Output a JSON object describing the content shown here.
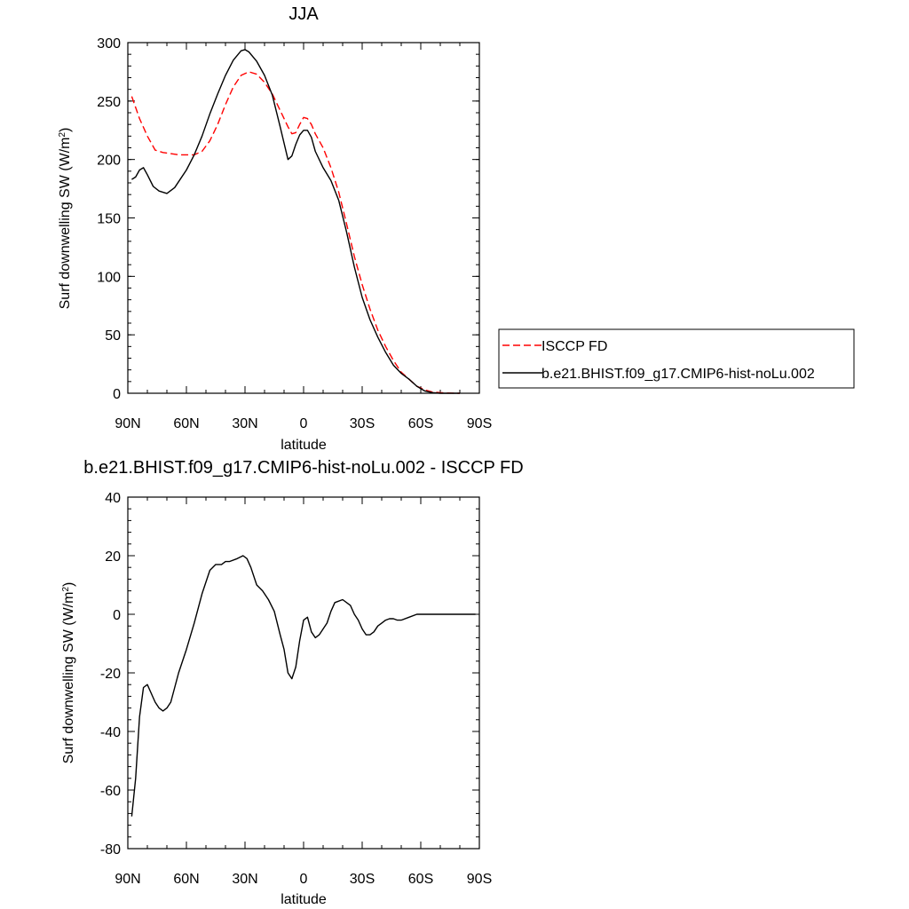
{
  "chart_data": [
    {
      "type": "line",
      "title": "JJA",
      "xlabel": "latitude",
      "ylabel": "Surf downwelling SW (W/m",
      "ylabel_sup": "2",
      "ylabel_close": ")",
      "xlim": [
        90,
        -90
      ],
      "ylim": [
        0,
        300
      ],
      "x_tick_values": [
        90,
        60,
        30,
        0,
        -30,
        -60,
        -90
      ],
      "x_tick_labels": [
        "90N",
        "60N",
        "30N",
        "0",
        "30S",
        "60S",
        "90S"
      ],
      "y_tick_values": [
        0,
        50,
        100,
        150,
        200,
        250,
        300
      ],
      "y_tick_labels": [
        "0",
        "50",
        "100",
        "150",
        "200",
        "250",
        "300"
      ],
      "legend_position": "right",
      "series": [
        {
          "name": "ISCCP FD",
          "color": "#ff0000",
          "dash": "dashed",
          "x": [
            88,
            84,
            80,
            76,
            72,
            68,
            64,
            60,
            56,
            52,
            48,
            44,
            40,
            36,
            32,
            28,
            24,
            20,
            16,
            12,
            8,
            6,
            4,
            2,
            0,
            -2,
            -4,
            -6,
            -10,
            -14,
            -18,
            -22,
            -26,
            -30,
            -34,
            -38,
            -42,
            -46,
            -50,
            -54,
            -58,
            -62,
            -66,
            -70,
            -74,
            -78,
            -80
          ],
          "y": [
            254,
            235,
            220,
            208,
            206,
            205,
            204,
            204,
            204,
            207,
            216,
            230,
            247,
            262,
            272,
            275,
            273,
            266,
            256,
            242,
            228,
            222,
            223,
            230,
            236,
            235,
            230,
            222,
            210,
            193,
            172,
            145,
            117,
            93,
            72,
            54,
            40,
            28,
            18,
            12,
            6,
            3,
            1,
            0.5,
            0.2,
            0,
            0
          ]
        },
        {
          "name": "b.e21.BHIST.f09_g17.CMIP6-hist-noLu.002",
          "color": "#000000",
          "dash": "solid",
          "x": [
            88,
            86,
            84,
            82,
            80,
            77,
            74,
            70,
            66,
            64,
            60,
            56,
            52,
            48,
            44,
            40,
            36,
            32,
            30,
            28,
            24,
            20,
            16,
            12,
            8,
            6,
            4,
            2,
            0,
            -2,
            -4,
            -6,
            -10,
            -14,
            -18,
            -22,
            -26,
            -30,
            -34,
            -38,
            -42,
            -46,
            -50,
            -54,
            -58,
            -62,
            -66,
            -70,
            -74,
            -78,
            -80
          ],
          "y": [
            183,
            185,
            191,
            193,
            187,
            177,
            173,
            171,
            176,
            181,
            191,
            204,
            220,
            239,
            256,
            272,
            285,
            293,
            294,
            292,
            284,
            272,
            255,
            228,
            200,
            203,
            213,
            221,
            225,
            225,
            219,
            207,
            193,
            182,
            165,
            138,
            108,
            82,
            63,
            48,
            35,
            24,
            17,
            12,
            6,
            2,
            0.5,
            0,
            0,
            0,
            0
          ]
        }
      ]
    },
    {
      "type": "line",
      "title": "b.e21.BHIST.f09_g17.CMIP6-hist-noLu.002 - ISCCP FD",
      "xlabel": "latitude",
      "ylabel": "Surf downwelling SW (W/m",
      "ylabel_sup": "2",
      "ylabel_close": ")",
      "xlim": [
        90,
        -90
      ],
      "ylim": [
        -80,
        40
      ],
      "x_tick_values": [
        90,
        60,
        30,
        0,
        -30,
        -60,
        -90
      ],
      "x_tick_labels": [
        "90N",
        "60N",
        "30N",
        "0",
        "30S",
        "60S",
        "90S"
      ],
      "y_tick_values": [
        -80,
        -60,
        -40,
        -20,
        0,
        20,
        40
      ],
      "y_tick_labels": [
        "-80",
        "-60",
        "-40",
        "-20",
        "0",
        "20",
        "40"
      ],
      "series": [
        {
          "color": "#000000",
          "dash": "solid",
          "x": [
            88,
            86,
            84,
            82,
            80,
            78,
            76,
            74,
            72,
            70,
            68,
            66,
            64,
            60,
            56,
            52,
            48,
            45,
            42,
            40,
            38,
            34,
            31,
            29,
            27,
            24,
            21,
            18,
            15,
            12,
            10,
            8,
            6,
            4,
            2,
            0,
            -2,
            -4,
            -6,
            -8,
            -10,
            -12,
            -14,
            -16,
            -20,
            -24,
            -26,
            -28,
            -30,
            -32,
            -34,
            -36,
            -38,
            -40,
            -42,
            -44,
            -46,
            -48,
            -50,
            -54,
            -58,
            -62,
            -66,
            -70,
            -74,
            -78,
            -82,
            -86,
            -88
          ],
          "y": [
            -69,
            -56,
            -35,
            -25,
            -24,
            -27,
            -30,
            -32,
            -33,
            -32,
            -30,
            -25,
            -20,
            -12,
            -3,
            7,
            15,
            17,
            17,
            18,
            18,
            19,
            20,
            19,
            16,
            10,
            8,
            5,
            1,
            -7,
            -12,
            -20,
            -22,
            -18,
            -9,
            -2,
            -1,
            -6,
            -8,
            -7,
            -5,
            -3,
            1,
            4,
            5,
            3,
            0,
            -2,
            -5,
            -7,
            -7,
            -6,
            -4,
            -3,
            -2,
            -1.5,
            -1.5,
            -2,
            -2,
            -1,
            0,
            0,
            0,
            0,
            0,
            0,
            0,
            0,
            0
          ]
        }
      ]
    }
  ]
}
